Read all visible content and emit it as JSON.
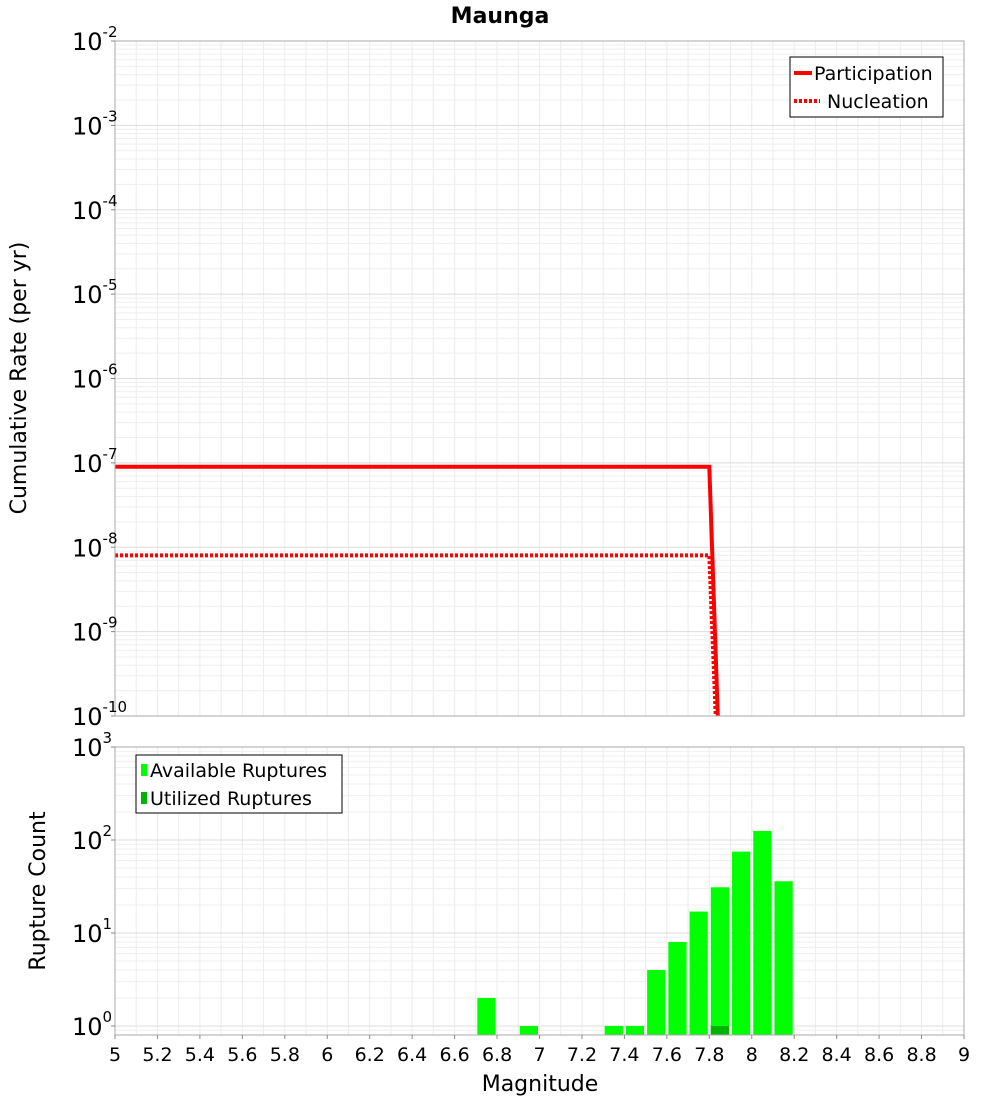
{
  "chart_data": [
    {
      "type": "line",
      "title": "Maunga",
      "xlabel": "",
      "ylabel": "Cumulative Rate (per yr)",
      "xlim": [
        5,
        9
      ],
      "ylim": [
        1e-10,
        0.01
      ],
      "yscale": "log",
      "y_ticks": [
        "10",
        "10",
        "10",
        "10",
        "10",
        "10",
        "10",
        "10",
        "10"
      ],
      "y_tick_exponents": [
        "-2",
        "-3",
        "-4",
        "-5",
        "-6",
        "-7",
        "-8",
        "-9",
        "-10"
      ],
      "y_tick_values": [
        0.01,
        0.001,
        0.0001,
        1e-05,
        1e-06,
        1e-07,
        1e-08,
        1e-09,
        1e-10
      ],
      "grid": true,
      "legend_position": "top-right",
      "series": [
        {
          "name": "Participation",
          "color": "#ff0000",
          "style": "solid",
          "x": [
            5.0,
            7.8,
            7.84
          ],
          "y": [
            9e-08,
            9e-08,
            1e-10
          ]
        },
        {
          "name": "Nucleation",
          "color": "#ff0000",
          "style": "dotted",
          "x": [
            5.0,
            7.8,
            7.83
          ],
          "y": [
            8e-09,
            8e-09,
            1e-10
          ]
        }
      ]
    },
    {
      "type": "bar",
      "title": "",
      "xlabel": "Magnitude",
      "ylabel": "Rupture Count",
      "xlim": [
        5,
        9
      ],
      "ylim": [
        0.8,
        1000
      ],
      "yscale": "log",
      "x_ticks": [
        "5",
        "5.2",
        "5.4",
        "5.6",
        "5.8",
        "6",
        "6.2",
        "6.4",
        "6.6",
        "6.8",
        "7",
        "7.2",
        "7.4",
        "7.6",
        "7.8",
        "8",
        "8.2",
        "8.4",
        "8.6",
        "8.8",
        "9"
      ],
      "y_ticks": [
        "10",
        "10",
        "10",
        "10"
      ],
      "y_tick_exponents": [
        "3",
        "2",
        "1",
        "0"
      ],
      "y_tick_values": [
        1000,
        100,
        10,
        1
      ],
      "grid": true,
      "legend_position": "top-left",
      "bar_width": 0.1,
      "series": [
        {
          "name": "Available Ruptures",
          "color": "#00ff00",
          "x": [
            6.75,
            6.95,
            7.35,
            7.45,
            7.55,
            7.65,
            7.75,
            7.85,
            7.95,
            8.05,
            8.15
          ],
          "values": [
            2,
            1,
            1,
            1,
            4,
            8,
            17,
            31,
            75,
            125,
            36
          ]
        },
        {
          "name": "Utilized Ruptures",
          "color": "#00b300",
          "x": [
            7.85
          ],
          "values": [
            1
          ]
        }
      ]
    }
  ]
}
